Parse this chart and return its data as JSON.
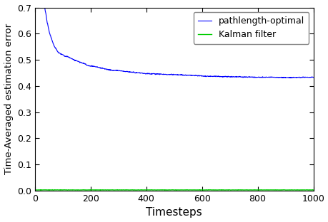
{
  "title": "",
  "xlabel": "Timesteps",
  "ylabel": "Time-Averaged estimation error",
  "xlim": [
    0,
    1000
  ],
  "ylim": [
    0,
    0.7
  ],
  "xticks": [
    0,
    200,
    400,
    600,
    800,
    1000
  ],
  "yticks": [
    0.0,
    0.1,
    0.2,
    0.3,
    0.4,
    0.5,
    0.6,
    0.7
  ],
  "line1_label": "pathlength-optimal",
  "line1_color": "#0000FF",
  "line2_label": "Kalman filter",
  "line2_color": "#00CC00",
  "steady_state_blue": 0.4285,
  "kalman_value": 0.003,
  "T": 1000,
  "figsize": [
    4.6,
    3.12
  ],
  "dpi": 100
}
